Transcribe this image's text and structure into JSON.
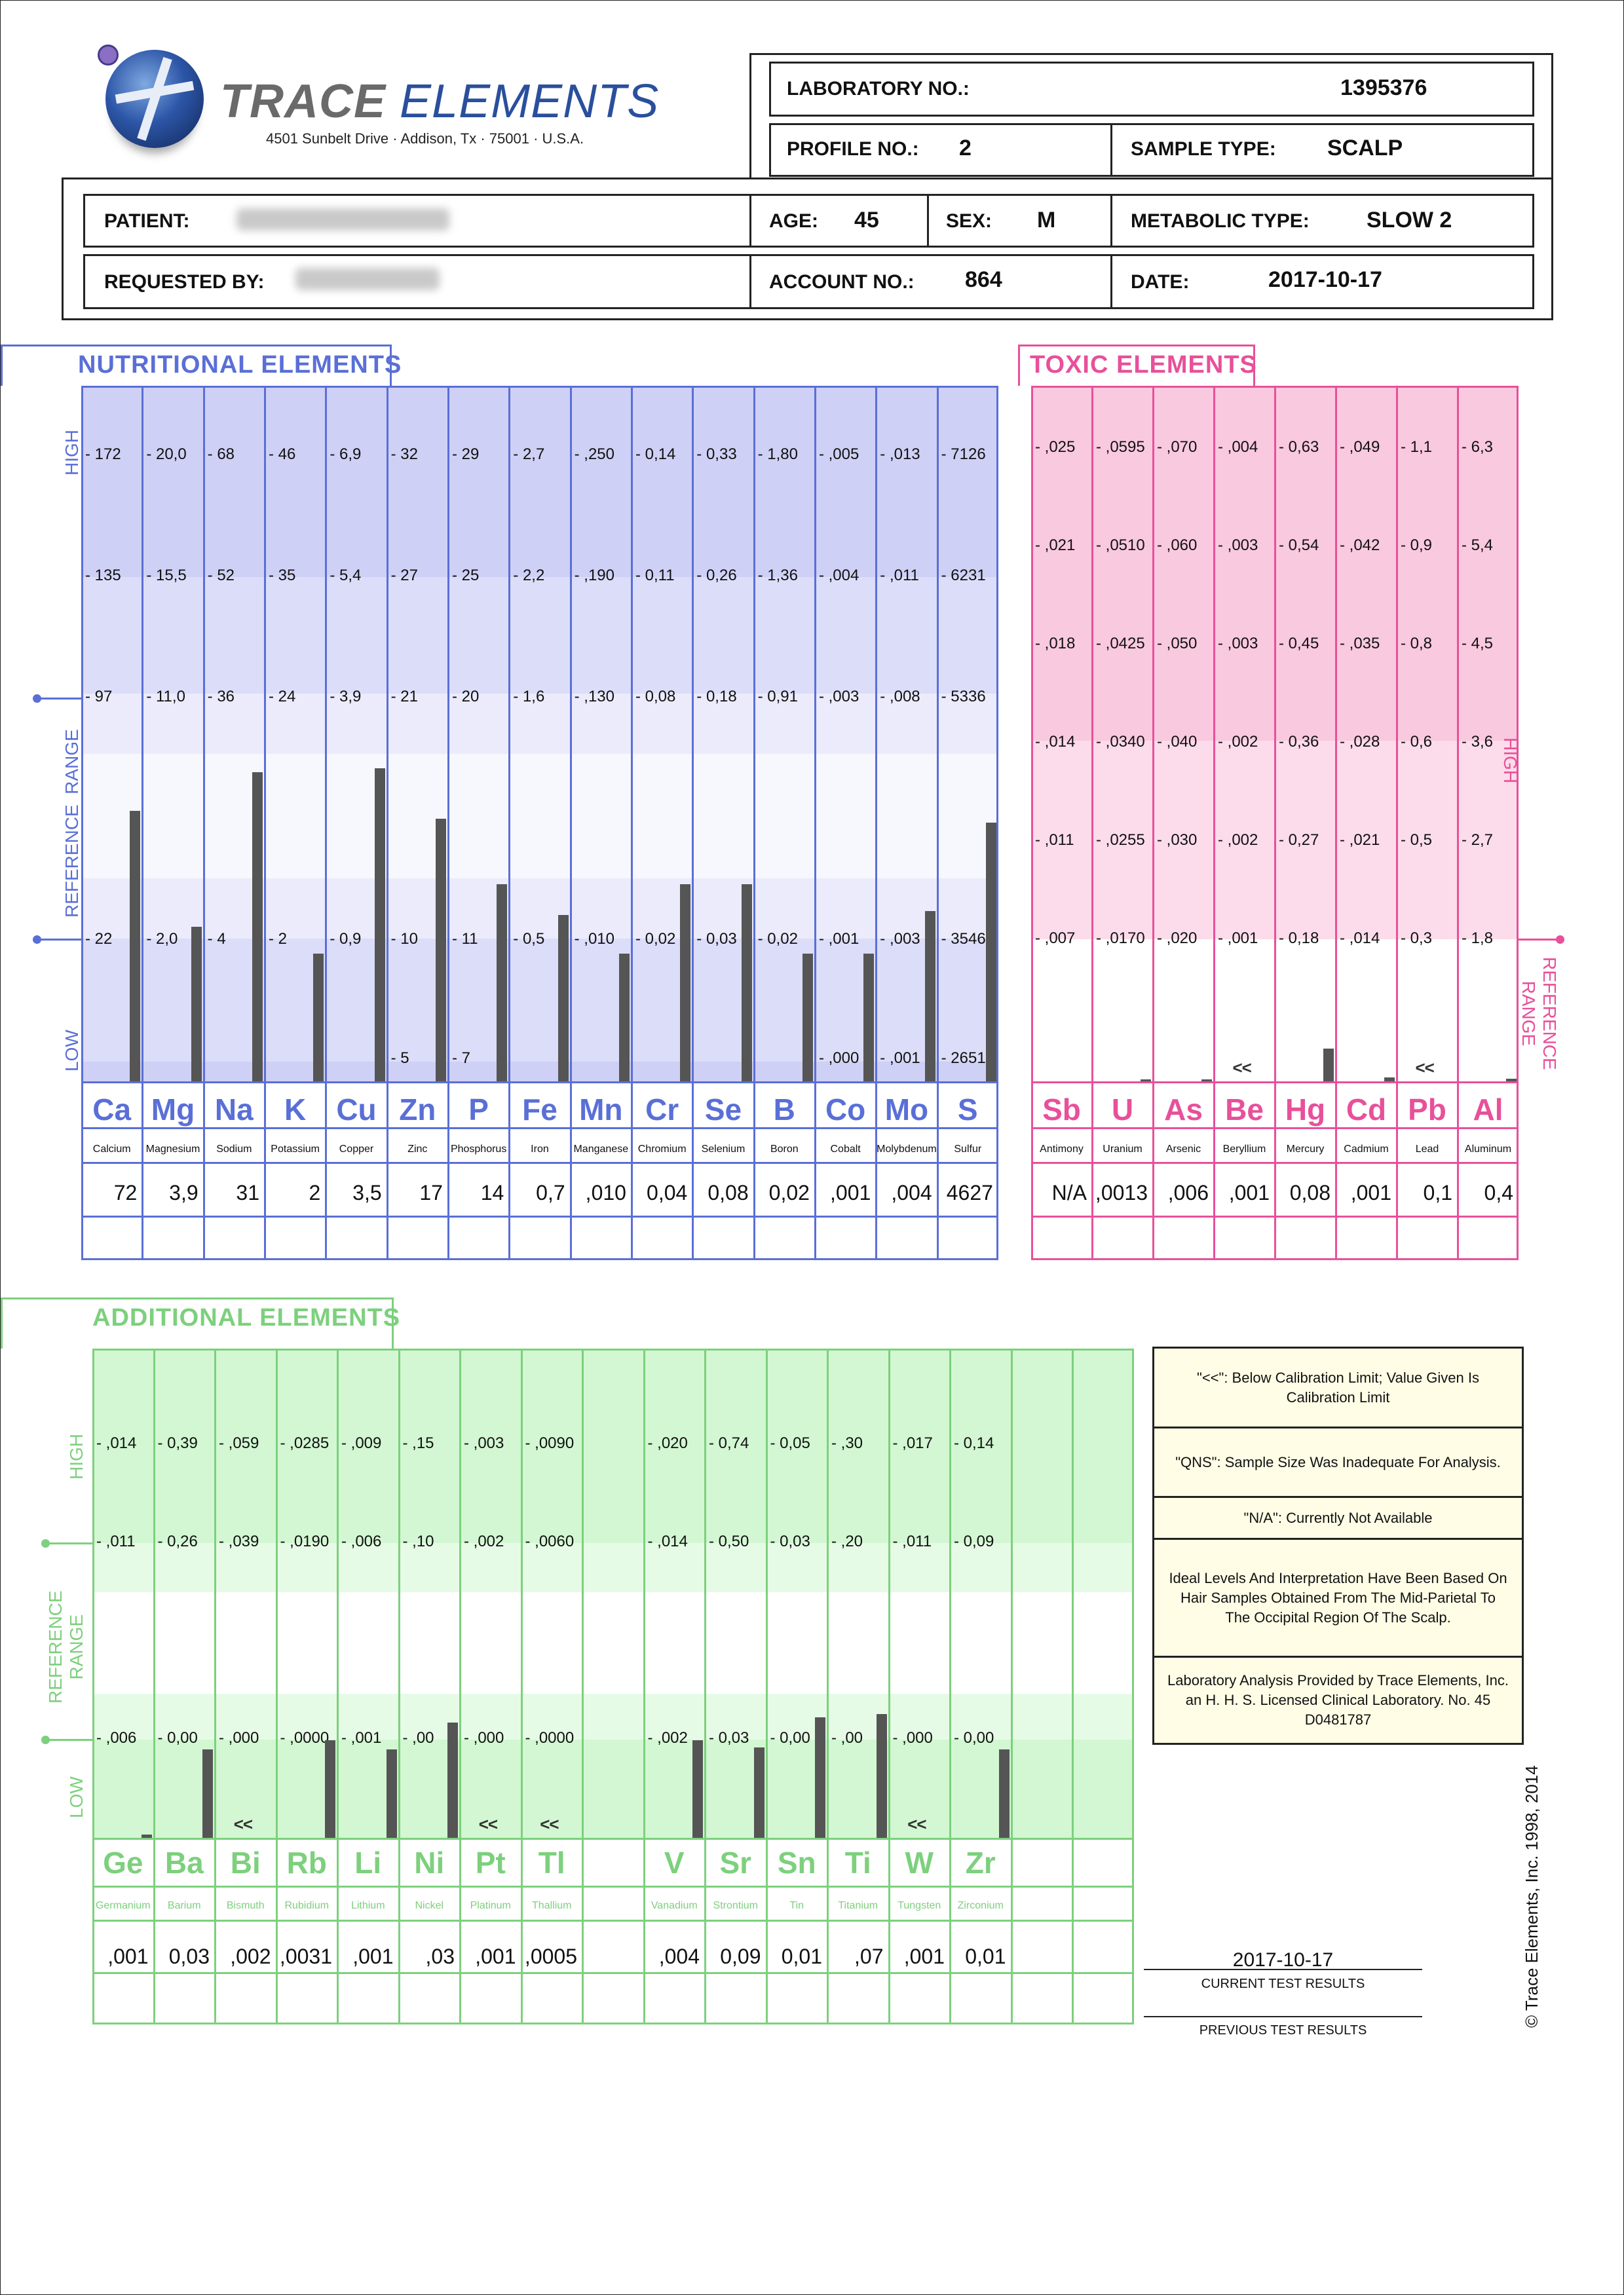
{
  "header": {
    "logo_word1": "TRACE",
    "logo_word2": "ELEMENTS",
    "address": "4501 Sunbelt Drive · Addison, Tx · 75001 · U.S.A.",
    "laboratory_no_label": "LABORATORY NO.:",
    "laboratory_no": "1395376",
    "profile_no_label": "PROFILE NO.:",
    "profile_no": "2",
    "sample_type_label": "SAMPLE TYPE:",
    "sample_type": "SCALP",
    "patient_label": "PATIENT:",
    "age_label": "AGE:",
    "age": "45",
    "sex_label": "SEX:",
    "sex": "M",
    "metabolic_type_label": "METABOLIC TYPE:",
    "metabolic_type": "SLOW 2",
    "requested_by_label": "REQUESTED BY:",
    "account_no_label": "ACCOUNT NO.:",
    "account_no": "864",
    "date_label": "DATE:",
    "date": "2017-10-17"
  },
  "nutritional": {
    "title": "NUTRITIONAL  ELEMENTS",
    "color": "#5a6fd6",
    "side_high": "HIGH",
    "side_reference": "REFERENCE  RANGE",
    "side_low": "LOW",
    "elements": [
      {
        "symbol": "Ca",
        "name": "Calcium",
        "result": "72",
        "ticks": [
          "172",
          "135",
          "97",
          "22"
        ],
        "low_tick": "",
        "level": 0.7,
        "below_limit": false
      },
      {
        "symbol": "Mg",
        "name": "Magnesium",
        "result": "3,9",
        "ticks": [
          "20,0",
          "15,5",
          "11,0",
          "2,0"
        ],
        "low_tick": "",
        "level": 0.4,
        "below_limit": false
      },
      {
        "symbol": "Na",
        "name": "Sodium",
        "result": "31",
        "ticks": [
          "68",
          "52",
          "36",
          "4"
        ],
        "low_tick": "",
        "level": 0.8,
        "below_limit": false
      },
      {
        "symbol": "K",
        "name": "Potassium",
        "result": "2",
        "ticks": [
          "46",
          "35",
          "24",
          "2"
        ],
        "low_tick": "",
        "level": 0.33,
        "below_limit": false
      },
      {
        "symbol": "Cu",
        "name": "Copper",
        "result": "3,5",
        "ticks": [
          "6,9",
          "5,4",
          "3,9",
          "0,9"
        ],
        "low_tick": "",
        "level": 0.81,
        "below_limit": false
      },
      {
        "symbol": "Zn",
        "name": "Zinc",
        "result": "17",
        "ticks": [
          "32",
          "27",
          "21",
          "10"
        ],
        "low_tick": "5",
        "level": 0.68,
        "below_limit": false
      },
      {
        "symbol": "P",
        "name": "Phosphorus",
        "result": "14",
        "ticks": [
          "29",
          "25",
          "20",
          "11"
        ],
        "low_tick": "7",
        "level": 0.51,
        "below_limit": false
      },
      {
        "symbol": "Fe",
        "name": "Iron",
        "result": "0,7",
        "ticks": [
          "2,7",
          "2,2",
          "1,6",
          "0,5"
        ],
        "low_tick": "",
        "level": 0.43,
        "below_limit": false
      },
      {
        "symbol": "Mn",
        "name": "Manganese",
        "result": ",010",
        "ticks": [
          ",250",
          ",190",
          ",130",
          ",010"
        ],
        "low_tick": "",
        "level": 0.33,
        "below_limit": false
      },
      {
        "symbol": "Cr",
        "name": "Chromium",
        "result": "0,04",
        "ticks": [
          "0,14",
          "0,11",
          "0,08",
          "0,02"
        ],
        "low_tick": "",
        "level": 0.51,
        "below_limit": false
      },
      {
        "symbol": "Se",
        "name": "Selenium",
        "result": "0,08",
        "ticks": [
          "0,33",
          "0,26",
          "0,18",
          "0,03"
        ],
        "low_tick": "",
        "level": 0.51,
        "below_limit": false
      },
      {
        "symbol": "B",
        "name": "Boron",
        "result": "0,02",
        "ticks": [
          "1,80",
          "1,36",
          "0,91",
          "0,02"
        ],
        "low_tick": "",
        "level": 0.33,
        "below_limit": false
      },
      {
        "symbol": "Co",
        "name": "Cobalt",
        "result": ",001",
        "ticks": [
          ",005",
          ",004",
          ",003",
          ",001"
        ],
        "low_tick": ",000",
        "level": 0.33,
        "below_limit": false
      },
      {
        "symbol": "Mo",
        "name": "Molybdenum",
        "result": ",004",
        "ticks": [
          ",013",
          ",011",
          ",008",
          ",003"
        ],
        "low_tick": ",001",
        "level": 0.44,
        "below_limit": false
      },
      {
        "symbol": "S",
        "name": "Sulfur",
        "result": "4627",
        "ticks": [
          "7126",
          "6231",
          "5336",
          "3546"
        ],
        "low_tick": "2651",
        "level": 0.67,
        "below_limit": false
      }
    ]
  },
  "toxic": {
    "title": "TOXIC  ELEMENTS",
    "color": "#e8509a",
    "side_high": "HIGH",
    "side_reference": "REFERENCE\nRANGE",
    "elements": [
      {
        "symbol": "Sb",
        "name": "Antimony",
        "result": "N/A",
        "ticks": [
          ",025",
          ",021",
          ",018",
          ",014",
          ",011",
          ",007"
        ],
        "level": 0,
        "below_limit": false
      },
      {
        "symbol": "U",
        "name": "Uranium",
        "result": ",0013",
        "ticks": [
          ",0595",
          ",0510",
          ",0425",
          ",0340",
          ",0255",
          ",0170"
        ],
        "level": 0.03,
        "below_limit": false
      },
      {
        "symbol": "As",
        "name": "Arsenic",
        "result": ",006",
        "ticks": [
          ",070",
          ",060",
          ",050",
          ",040",
          ",030",
          ",020"
        ],
        "level": 0.03,
        "below_limit": false
      },
      {
        "symbol": "Be",
        "name": "Beryllium",
        "result": ",001",
        "ticks": [
          ",004",
          ",003",
          ",003",
          ",002",
          ",002",
          ",001"
        ],
        "level": 0,
        "below_limit": true
      },
      {
        "symbol": "Hg",
        "name": "Mercury",
        "result": "0,08",
        "ticks": [
          "0,63",
          "0,54",
          "0,45",
          "0,36",
          "0,27",
          "0,18"
        ],
        "level": 0.45,
        "below_limit": false
      },
      {
        "symbol": "Cd",
        "name": "Cadmium",
        "result": ",001",
        "ticks": [
          ",049",
          ",042",
          ",035",
          ",028",
          ",021",
          ",014"
        ],
        "level": 0.05,
        "below_limit": false
      },
      {
        "symbol": "Pb",
        "name": "Lead",
        "result": "0,1",
        "ticks": [
          "1,1",
          "0,9",
          "0,8",
          "0,6",
          "0,5",
          "0,3"
        ],
        "level": 0,
        "below_limit": true
      },
      {
        "symbol": "Al",
        "name": "Aluminum",
        "result": "0,4",
        "ticks": [
          "6,3",
          "5,4",
          "4,5",
          "3,6",
          "2,7",
          "1,8"
        ],
        "level": 0.04,
        "below_limit": false
      }
    ]
  },
  "additional": {
    "title": "ADDITIONAL  ELEMENTS",
    "color": "#7dd07d",
    "side_high": "HIGH",
    "side_reference": "REFERENCE\nRANGE",
    "side_low": "LOW",
    "elements": [
      {
        "symbol": "Ge",
        "name": "Germanium",
        "result": ",001",
        "ticks": [
          ",014",
          ",011",
          ",006"
        ],
        "level": 0.04,
        "below_limit": false
      },
      {
        "symbol": "Ba",
        "name": "Barium",
        "result": "0,03",
        "ticks": [
          "0,39",
          "0,26",
          "0,00"
        ],
        "level": 1.0,
        "below_limit": false
      },
      {
        "symbol": "Bi",
        "name": "Bismuth",
        "result": ",002",
        "ticks": [
          ",059",
          ",039",
          ",000"
        ],
        "level": 0,
        "below_limit": true
      },
      {
        "symbol": "Rb",
        "name": "Rubidium",
        "result": ",0031",
        "ticks": [
          ",0285",
          ",0190",
          ",0000"
        ],
        "level": 1.1,
        "below_limit": false
      },
      {
        "symbol": "Li",
        "name": "Lithium",
        "result": ",001",
        "ticks": [
          ",009",
          ",006",
          ",001"
        ],
        "level": 1.0,
        "below_limit": false
      },
      {
        "symbol": "Ni",
        "name": "Nickel",
        "result": ",03",
        "ticks": [
          ",15",
          ",10",
          ",00"
        ],
        "level": 1.3,
        "below_limit": false
      },
      {
        "symbol": "Pt",
        "name": "Platinum",
        "result": ",001",
        "ticks": [
          ",003",
          ",002",
          ",000"
        ],
        "level": 0,
        "below_limit": true
      },
      {
        "symbol": "Tl",
        "name": "Thallium",
        "result": ",0005",
        "ticks": [
          ",0090",
          ",0060",
          ",0000"
        ],
        "level": 0,
        "below_limit": true
      },
      {
        "symbol": "",
        "name": "",
        "result": "",
        "ticks": [
          "",
          "",
          ""
        ],
        "level": 0,
        "below_limit": false
      },
      {
        "symbol": "V",
        "name": "Vanadium",
        "result": ",004",
        "ticks": [
          ",020",
          ",014",
          ",002"
        ],
        "level": 1.1,
        "below_limit": false
      },
      {
        "symbol": "Sr",
        "name": "Strontium",
        "result": "0,09",
        "ticks": [
          "0,74",
          "0,50",
          "0,03"
        ],
        "level": 1.02,
        "below_limit": false
      },
      {
        "symbol": "Sn",
        "name": "Tin",
        "result": "0,01",
        "ticks": [
          "0,05",
          "0,03",
          "0,00"
        ],
        "level": 1.36,
        "below_limit": false
      },
      {
        "symbol": "Ti",
        "name": "Titanium",
        "result": ",07",
        "ticks": [
          ",30",
          ",20",
          ",00"
        ],
        "level": 1.4,
        "below_limit": false
      },
      {
        "symbol": "W",
        "name": "Tungsten",
        "result": ",001",
        "ticks": [
          ",017",
          ",011",
          ",000"
        ],
        "level": 0,
        "below_limit": true
      },
      {
        "symbol": "Zr",
        "name": "Zirconium",
        "result": "0,01",
        "ticks": [
          "0,14",
          "0,09",
          "0,00"
        ],
        "level": 1.0,
        "below_limit": false
      },
      {
        "symbol": "",
        "name": "",
        "result": "",
        "ticks": [
          "",
          "",
          ""
        ],
        "level": 0,
        "below_limit": false
      },
      {
        "symbol": "",
        "name": "",
        "result": "",
        "ticks": [
          "",
          "",
          ""
        ],
        "level": 0,
        "below_limit": false
      }
    ]
  },
  "below_limit_marker": "<<",
  "legend": [
    "\"<<\": Below Calibration Limit; Value Given Is Calibration Limit",
    "\"QNS\": Sample Size Was Inadequate For Analysis.",
    "\"N/A\": Currently Not Available",
    "Ideal Levels And Interpretation Have Been Based On Hair Samples Obtained From The Mid-Parietal To The Occipital Region Of The Scalp.",
    "Laboratory Analysis Provided by Trace Elements, Inc. an H. H. S. Licensed Clinical Laboratory.  No. 45 D0481787"
  ],
  "footer": {
    "current_date": "2017-10-17",
    "current_label": "CURRENT  TEST  RESULTS",
    "previous_label": "PREVIOUS  TEST  RESULTS",
    "copyright": "© Trace Elements, Inc. 1998, 2014"
  }
}
